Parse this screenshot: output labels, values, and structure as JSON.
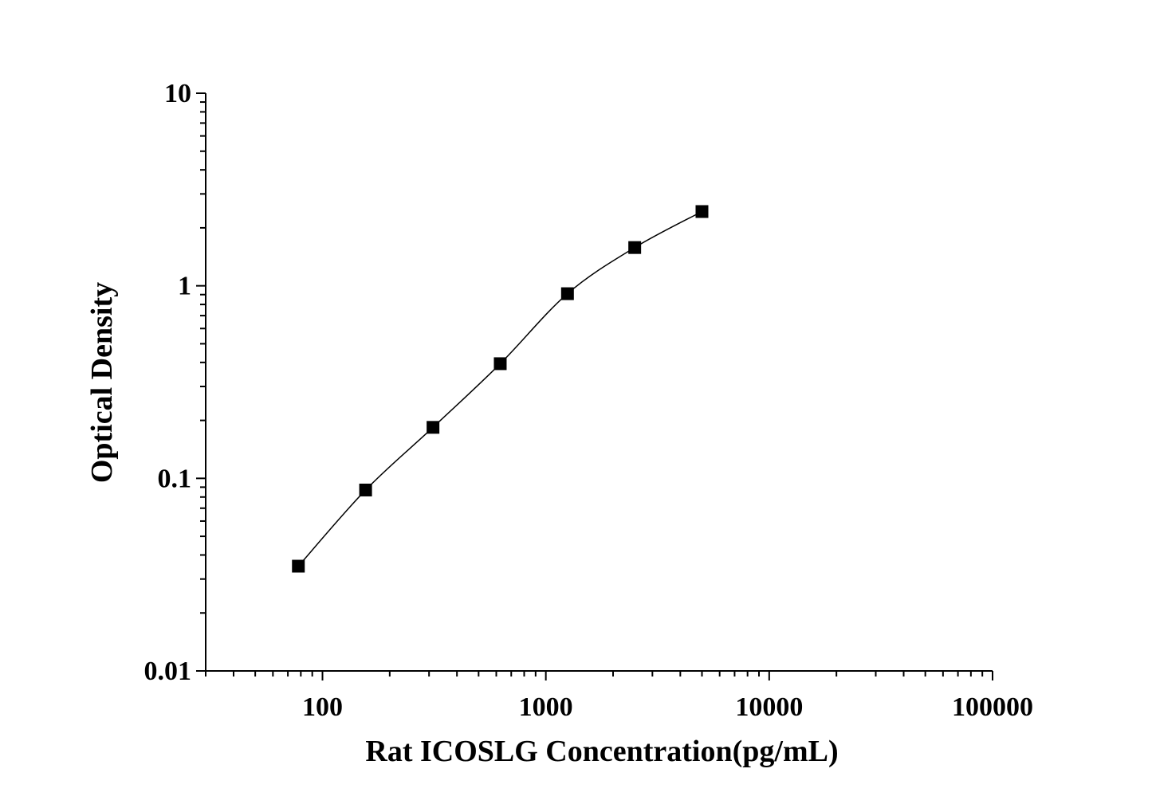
{
  "chart_data": {
    "type": "line",
    "title": "",
    "xlabel": "Rat ICOSLG Concentration(pg/mL)",
    "ylabel": "Optical Density",
    "x_scale": "log",
    "y_scale": "log",
    "xlim": [
      30,
      100000
    ],
    "ylim": [
      0.01,
      10
    ],
    "x_ticks": [
      100,
      1000,
      10000,
      100000
    ],
    "x_tick_labels": [
      "100",
      "1000",
      "10000",
      "100000"
    ],
    "y_ticks": [
      0.01,
      0.1,
      1,
      10
    ],
    "y_tick_labels": [
      "0.01",
      "0.1",
      "1",
      "10"
    ],
    "grid": false,
    "marker": "square",
    "color": "#000000",
    "series": [
      {
        "x": [
          78,
          156,
          312.5,
          625,
          1250,
          2500,
          5000
        ],
        "y": [
          0.035,
          0.087,
          0.184,
          0.394,
          0.91,
          1.58,
          2.43
        ]
      }
    ]
  }
}
